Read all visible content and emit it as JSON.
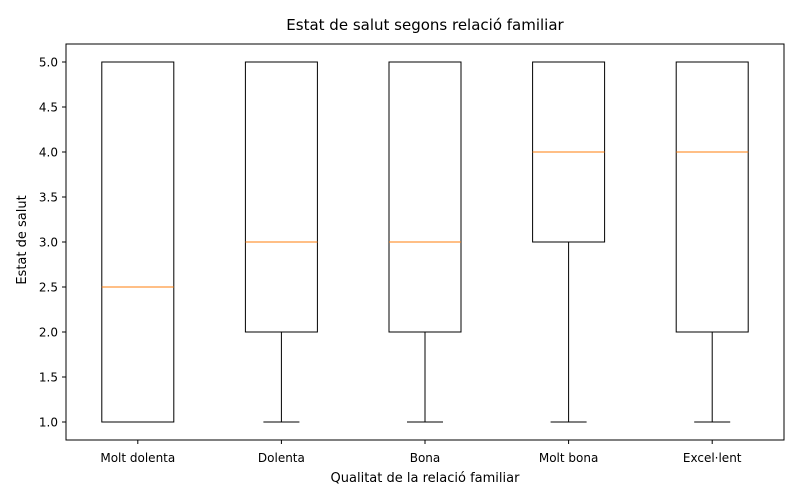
{
  "chart_data": {
    "type": "box",
    "title": "Estat de salut segons relació familiar",
    "xlabel": "Qualitat de la relació familiar",
    "ylabel": "Estat de salut",
    "categories": [
      "Molt dolenta",
      "Dolenta",
      "Bona",
      "Molt bona",
      "Excel·lent"
    ],
    "boxes": [
      {
        "whisker_low": 1.0,
        "q1": 1.0,
        "median": 2.5,
        "q3": 5.0,
        "whisker_high": 5.0
      },
      {
        "whisker_low": 1.0,
        "q1": 2.0,
        "median": 3.0,
        "q3": 5.0,
        "whisker_high": 5.0
      },
      {
        "whisker_low": 1.0,
        "q1": 2.0,
        "median": 3.0,
        "q3": 5.0,
        "whisker_high": 5.0
      },
      {
        "whisker_low": 1.0,
        "q1": 3.0,
        "median": 4.0,
        "q3": 5.0,
        "whisker_high": 5.0
      },
      {
        "whisker_low": 1.0,
        "q1": 2.0,
        "median": 4.0,
        "q3": 5.0,
        "whisker_high": 5.0
      }
    ],
    "ylim": [
      0.8,
      5.2
    ],
    "yticks": [
      "1.0",
      "1.5",
      "2.0",
      "2.5",
      "3.0",
      "3.5",
      "4.0",
      "4.5",
      "5.0"
    ],
    "grid": false,
    "colors": {
      "box": "#000000",
      "median": "#ff7f0e",
      "axes": "#000000"
    }
  }
}
